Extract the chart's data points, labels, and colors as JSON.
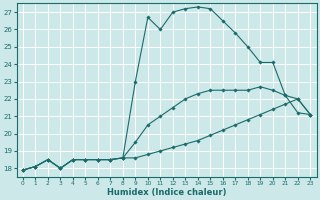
{
  "xlabel": "Humidex (Indice chaleur)",
  "background_color": "#cce8e8",
  "line_color": "#1a6b6b",
  "grid_color": "#ffffff",
  "xlim": [
    -0.5,
    23.5
  ],
  "ylim": [
    17.5,
    27.5
  ],
  "xticks": [
    0,
    1,
    2,
    3,
    4,
    5,
    6,
    7,
    8,
    9,
    10,
    11,
    12,
    13,
    14,
    15,
    16,
    17,
    18,
    19,
    20,
    21,
    22,
    23
  ],
  "yticks": [
    18,
    19,
    20,
    21,
    22,
    23,
    24,
    25,
    26,
    27
  ],
  "series": [
    {
      "x": [
        0,
        1,
        2,
        3,
        4,
        5,
        6,
        7,
        8,
        9,
        10,
        11,
        12,
        13,
        14,
        15,
        16,
        17,
        18,
        19,
        20,
        21,
        22,
        23
      ],
      "y": [
        17.9,
        18.1,
        18.5,
        18.0,
        18.5,
        18.5,
        18.5,
        18.5,
        18.6,
        23.0,
        26.7,
        26.0,
        27.0,
        27.2,
        27.3,
        27.2,
        26.5,
        25.8,
        25.0,
        24.1,
        24.1,
        22.2,
        21.2,
        21.1
      ]
    },
    {
      "x": [
        0,
        1,
        2,
        3,
        4,
        5,
        6,
        7,
        8,
        9,
        10,
        11,
        12,
        13,
        14,
        15,
        16,
        17,
        18,
        19,
        20,
        21,
        22,
        23
      ],
      "y": [
        17.9,
        18.1,
        18.5,
        18.0,
        18.5,
        18.5,
        18.5,
        18.5,
        18.6,
        19.5,
        20.5,
        21.0,
        21.5,
        22.0,
        22.3,
        22.5,
        22.5,
        22.5,
        22.5,
        22.7,
        22.5,
        22.2,
        22.0,
        21.1
      ]
    },
    {
      "x": [
        0,
        1,
        2,
        3,
        4,
        5,
        6,
        7,
        8,
        9,
        10,
        11,
        12,
        13,
        14,
        15,
        16,
        17,
        18,
        19,
        20,
        21,
        22,
        23
      ],
      "y": [
        17.9,
        18.1,
        18.5,
        18.0,
        18.5,
        18.5,
        18.5,
        18.5,
        18.6,
        18.6,
        18.8,
        19.0,
        19.2,
        19.4,
        19.6,
        19.9,
        20.2,
        20.5,
        20.8,
        21.1,
        21.4,
        21.7,
        22.0,
        21.1
      ]
    }
  ]
}
